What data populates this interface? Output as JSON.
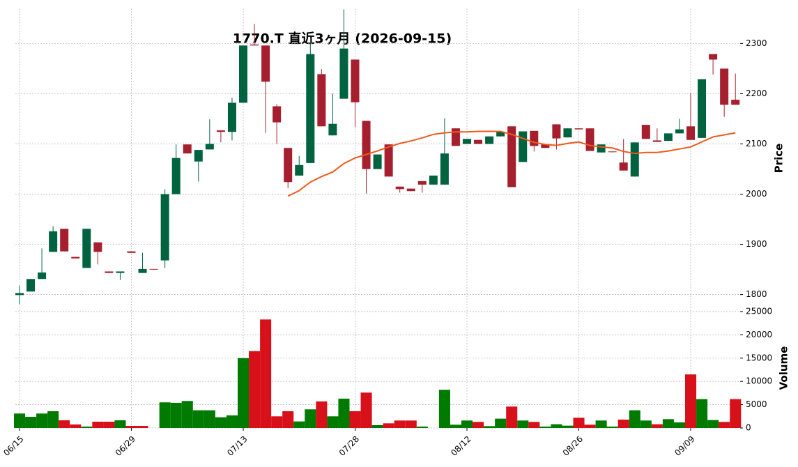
{
  "chart_data": {
    "type": "candlestick",
    "title": "1770.T  直近3ヶ月  (2026-09-15)",
    "categories": [
      "06/15",
      null,
      null,
      null,
      null,
      null,
      null,
      null,
      null,
      null,
      "06/29",
      null,
      null,
      null,
      null,
      null,
      null,
      null,
      null,
      null,
      "07/13",
      null,
      null,
      null,
      null,
      null,
      null,
      null,
      null,
      null,
      "07/28",
      null,
      null,
      null,
      null,
      null,
      null,
      null,
      null,
      null,
      "08/12",
      null,
      null,
      null,
      null,
      null,
      null,
      null,
      null,
      null,
      "08/26",
      null,
      null,
      null,
      null,
      null,
      null,
      null,
      null,
      null,
      "09/09",
      null,
      null,
      null,
      null
    ],
    "open": [
      1799,
      1806,
      1831,
      1885,
      1931,
      1875,
      1853,
      1904,
      1846,
      1843,
      1886,
      1843,
      1851,
      1868,
      2000,
      2099,
      2065,
      2089,
      2127,
      2124,
      2182,
      2298,
      2296,
      2175,
      2092,
      2037,
      2062,
      2239,
      2117,
      2190,
      2268,
      2146,
      2050,
      2099,
      2015,
      2011,
      2026,
      2019,
      2019,
      2131,
      2100,
      2108,
      2100,
      2115,
      2135,
      2064,
      2126,
      2099,
      2139,
      2113,
      2131,
      2131,
      2083,
      2085,
      2063,
      2035,
      2138,
      2107,
      2106,
      2121,
      2135,
      2112,
      2279,
      2250,
      2188
    ],
    "high": [
      1818,
      1831,
      1892,
      1936,
      1931,
      1875,
      1931,
      1904,
      1846,
      1846,
      1886,
      1883,
      1851,
      2010,
      2099,
      2099,
      2088,
      2149,
      2127,
      2192,
      2296,
      2339,
      2296,
      2179,
      2092,
      2076,
      2301,
      2249,
      2200,
      2368,
      2268,
      2146,
      2079,
      2099,
      2015,
      2011,
      2026,
      2037,
      2151,
      2131,
      2110,
      2108,
      2115,
      2124,
      2135,
      2125,
      2126,
      2099,
      2139,
      2131,
      2131,
      2131,
      2099,
      2085,
      2110,
      2103,
      2138,
      2131,
      2121,
      2150,
      2201,
      2229,
      2279,
      2250,
      2240
    ],
    "low": [
      1781,
      1806,
      1831,
      1885,
      1886,
      1872,
      1853,
      1860,
      1843,
      1829,
      1883,
      1843,
      1850,
      1853,
      2000,
      2081,
      2025,
      2089,
      2103,
      2107,
      2182,
      2296,
      2122,
      2100,
      2012,
      2037,
      2062,
      2135,
      2117,
      2190,
      2133,
      2001,
      2050,
      2035,
      2003,
      2006,
      2003,
      2019,
      2019,
      2096,
      2100,
      2100,
      2100,
      2115,
      2014,
      2064,
      2085,
      2092,
      2089,
      2113,
      2129,
      2086,
      2083,
      2083,
      2047,
      2035,
      2110,
      2104,
      2106,
      2121,
      2108,
      2112,
      2238,
      2154,
      2178
    ],
    "close": [
      1803,
      1831,
      1844,
      1926,
      1886,
      1872,
      1931,
      1885,
      1843,
      1846,
      1883,
      1851,
      1850,
      2000,
      2072,
      2081,
      2088,
      2100,
      2124,
      2182,
      2296,
      2296,
      2224,
      2143,
      2024,
      2058,
      2279,
      2135,
      2140,
      2290,
      2183,
      2050,
      2079,
      2035,
      2010,
      2006,
      2019,
      2037,
      2081,
      2096,
      2110,
      2100,
      2115,
      2124,
      2014,
      2125,
      2096,
      2092,
      2111,
      2131,
      2129,
      2086,
      2099,
      2084,
      2047,
      2103,
      2110,
      2104,
      2121,
      2129,
      2108,
      2229,
      2268,
      2178,
      2178
    ],
    "up_color": "#006340",
    "down_color": "#a51f2e",
    "ylabel": "Price",
    "ylim": [
      1780,
      2370
    ],
    "yticks": [
      1800,
      1900,
      2000,
      2100,
      2200,
      2300
    ],
    "grid": true,
    "ma": {
      "color": "#f05a1a",
      "values": [
        null,
        null,
        null,
        null,
        null,
        null,
        null,
        null,
        null,
        null,
        null,
        null,
        null,
        null,
        null,
        null,
        null,
        null,
        null,
        null,
        null,
        null,
        null,
        null,
        1996,
        2007,
        2024,
        2035,
        2044,
        2061,
        2072,
        2079,
        2086,
        2094,
        2101,
        2106,
        2112,
        2119,
        2122,
        2124,
        2124,
        2125,
        2125,
        2125,
        2119,
        2111,
        2103,
        2099,
        2097,
        2101,
        2104,
        2097,
        2094,
        2092,
        2085,
        2081,
        2083,
        2083,
        2086,
        2090,
        2094,
        2104,
        2114,
        2118,
        2122
      ]
    },
    "volume": {
      "ylabel": "Volume",
      "ylim": [
        0,
        25000
      ],
      "yticks": [
        0,
        5000,
        10000,
        15000,
        20000,
        25000
      ],
      "values": [
        3100,
        2400,
        3100,
        3600,
        1650,
        750,
        300,
        1350,
        1350,
        1650,
        450,
        450,
        null,
        5500,
        5400,
        5800,
        3800,
        3800,
        2300,
        2700,
        15000,
        16500,
        23300,
        2500,
        3600,
        1400,
        4000,
        5700,
        2500,
        6300,
        3600,
        7600,
        600,
        1000,
        1600,
        1600,
        300,
        null,
        8200,
        700,
        1600,
        1300,
        400,
        2000,
        4600,
        1600,
        1300,
        300,
        800,
        500,
        2200,
        700,
        1600,
        300,
        1800,
        3800,
        1600,
        800,
        1900,
        1200,
        11500,
        6200,
        1700,
        1300,
        6200
      ],
      "colors": [
        "#007a00",
        "#007a00",
        "#007a00",
        "#007a00",
        "#d8101a",
        "#d8101a",
        "#007a00",
        "#d8101a",
        "#d8101a",
        "#007a00",
        "#d8101a",
        "#d8101a",
        null,
        "#007a00",
        "#007a00",
        "#007a00",
        "#007a00",
        "#007a00",
        "#007a00",
        "#007a00",
        "#007a00",
        "#d8101a",
        "#d8101a",
        "#d8101a",
        "#d8101a",
        "#007a00",
        "#007a00",
        "#d8101a",
        "#007a00",
        "#007a00",
        "#d8101a",
        "#d8101a",
        "#007a00",
        "#d8101a",
        "#d8101a",
        "#d8101a",
        "#007a00",
        null,
        "#007a00",
        "#007a00",
        "#007a00",
        "#d8101a",
        "#007a00",
        "#007a00",
        "#d8101a",
        "#007a00",
        "#d8101a",
        "#007a00",
        "#007a00",
        "#007a00",
        "#d8101a",
        "#d8101a",
        "#007a00",
        "#007a00",
        "#d8101a",
        "#007a00",
        "#007a00",
        "#d8101a",
        "#007a00",
        "#007a00",
        "#d8101a",
        "#007a00",
        "#007a00",
        "#d8101a",
        "#d8101a"
      ]
    }
  }
}
